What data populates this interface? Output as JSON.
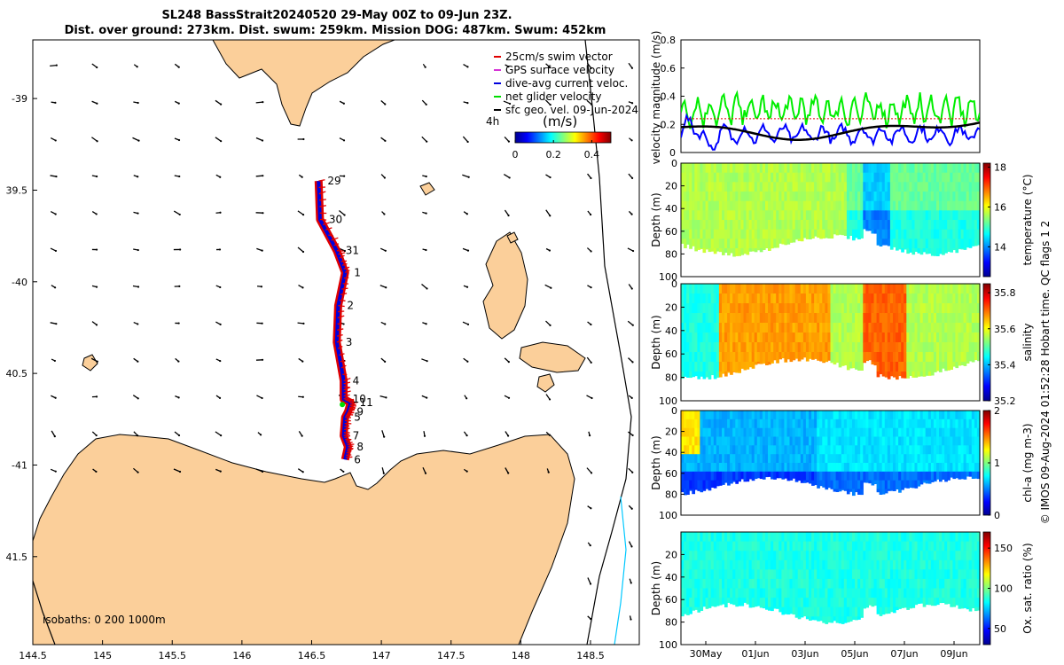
{
  "figure": {
    "title_line1": "SL248 BassStrait20240520 29-May 00Z to 09-Jun 23Z.",
    "title_line2": "Dist. over ground: 273km. Dist. swum: 259km. Mission DOG: 487km. Swum: 452km",
    "footer_note": "© IMOS 09-Aug-2024 01:52:28 Hobart time. QC flags 1  2"
  },
  "chart_data": [
    {
      "id": "map",
      "type": "scatter",
      "title": "",
      "xlim": [
        144.5,
        148.85
      ],
      "ylim": [
        -41.98,
        -38.68
      ],
      "x_ticks": [
        144.5,
        145,
        145.5,
        146,
        146.5,
        147,
        147.5,
        148,
        148.5
      ],
      "x_tick_labels": [
        "144.5",
        "145",
        "145.5",
        "146",
        "146.5",
        "147",
        "147.5",
        "148",
        "148.5"
      ],
      "y_ticks": [
        -39,
        -39.5,
        -40,
        -40.5,
        -41,
        -41.5
      ],
      "y_tick_labels": [
        "-39",
        "39.5",
        "-40",
        "40.5",
        "-41",
        "41.5"
      ],
      "legend": [
        {
          "label": "25cm/s swim vector",
          "color": "#e00000"
        },
        {
          "label": "GPS surface velocity",
          "color": "#d633d6"
        },
        {
          "label": "dive-avg current veloc.",
          "color": "#0000dd"
        },
        {
          "label": "net glider velocity",
          "color": "#00dd00"
        },
        {
          "label": "sfc geo. vel. 09-Jun-2024",
          "color": "#000000"
        }
      ],
      "legend_extra": "4h",
      "colorbar": {
        "label": "(m/s)",
        "range": [
          0,
          0.5
        ],
        "ticks": [
          0,
          0.2,
          0.4
        ],
        "tick_labels": [
          "0",
          "0.2",
          "0.4"
        ]
      },
      "isobaths_label": "isobaths: 0   200  1000m",
      "track": [
        {
          "day": "29",
          "lon": 146.55,
          "lat": -39.45
        },
        {
          "day": "30",
          "lon": 146.56,
          "lat": -39.66
        },
        {
          "day": "31",
          "lon": 146.68,
          "lat": -39.83
        },
        {
          "day": "1",
          "lon": 146.74,
          "lat": -39.95
        },
        {
          "day": "2",
          "lon": 146.69,
          "lat": -40.13
        },
        {
          "day": "3",
          "lon": 146.68,
          "lat": -40.33
        },
        {
          "day": "4",
          "lon": 146.73,
          "lat": -40.54
        },
        {
          "day": "10",
          "lon": 146.73,
          "lat": -40.64
        },
        {
          "day": "11",
          "lon": 146.78,
          "lat": -40.66
        },
        {
          "day": "9",
          "lon": 146.76,
          "lat": -40.71
        },
        {
          "day": "5",
          "lon": 146.74,
          "lat": -40.74
        },
        {
          "day": "7",
          "lon": 146.73,
          "lat": -40.84
        },
        {
          "day": "8",
          "lon": 146.76,
          "lat": -40.9
        },
        {
          "day": "6",
          "lon": 146.74,
          "lat": -40.97
        }
      ]
    },
    {
      "id": "velocity",
      "type": "line",
      "ylabel": "velocity magnitude (m/s)",
      "ylim": [
        0,
        0.8
      ],
      "y_ticks": [
        0,
        0.2,
        0.4,
        0.6,
        0.8
      ],
      "y_tick_labels": [
        "0",
        "0.2",
        "0.4",
        "0.6",
        "0.8"
      ],
      "x_range_days": [
        "29-May",
        "10-Jun"
      ],
      "series": [
        {
          "color": "#00ee00",
          "mean": 0.3,
          "amplitude": 0.08
        },
        {
          "color": "#0000ff",
          "mean": 0.13,
          "amplitude": 0.05
        },
        {
          "color": "#000000",
          "mean": 0.15,
          "amplitude": 0.03
        }
      ]
    },
    {
      "id": "temperature",
      "type": "heatmap",
      "ylabel": "Depth (m)",
      "cbar_label": "temperature (°C)",
      "ylim": [
        100,
        0
      ],
      "y_ticks": [
        0,
        20,
        40,
        60,
        80,
        100
      ],
      "cbar_range": [
        12.5,
        18.2
      ],
      "cbar_ticks": [
        14,
        16,
        18
      ],
      "values_range_shown": [
        13.5,
        16.5
      ]
    },
    {
      "id": "salinity",
      "type": "heatmap",
      "ylabel": "Depth (m)",
      "cbar_label": "salinity",
      "ylim": [
        100,
        0
      ],
      "y_ticks": [
        0,
        20,
        40,
        60,
        80,
        100
      ],
      "cbar_range": [
        35.2,
        35.85
      ],
      "cbar_ticks": [
        35.2,
        35.4,
        35.6,
        35.8
      ],
      "cbar_tick_labels": [
        "35.2",
        "35.4",
        "35.6",
        "35.8"
      ]
    },
    {
      "id": "chla",
      "type": "heatmap",
      "ylabel": "Depth (m)",
      "cbar_label": "chl-a (mg m-3)",
      "ylim": [
        100,
        0
      ],
      "y_ticks": [
        0,
        20,
        40,
        60,
        80,
        100
      ],
      "cbar_range": [
        0,
        2
      ],
      "cbar_ticks": [
        0,
        1,
        2
      ]
    },
    {
      "id": "oxygen",
      "type": "heatmap",
      "ylabel": "Depth (m)",
      "cbar_label": "Ox. sat. ratio (%)",
      "ylim": [
        100,
        0
      ],
      "y_ticks": [
        20,
        40,
        60,
        80,
        100
      ],
      "cbar_range": [
        30,
        170
      ],
      "cbar_ticks": [
        50,
        100,
        150
      ],
      "x_tick_labels": [
        "30May",
        "01Jun",
        "03Jun",
        "05Jun",
        "07Jun",
        "09Jun"
      ]
    }
  ]
}
